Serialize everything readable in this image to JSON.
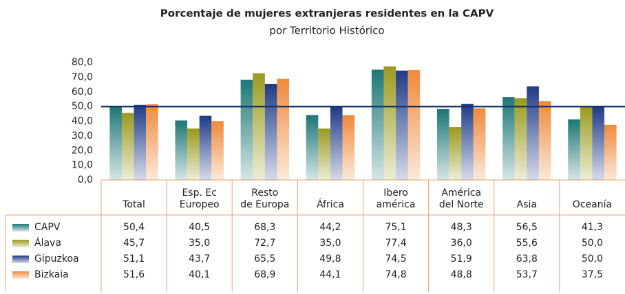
{
  "chart_data": {
    "type": "bar",
    "title": "Porcentaje de mujeres extranjeras residentes en la CAPV",
    "subtitle": "por Territorio Histórico",
    "categories": [
      "Total",
      "Esp. Ec\nEuropeo",
      "Resto\nde Europa",
      "África",
      "Ibero\namérica",
      "América\ndel Norte",
      "Asia",
      "Oceanía"
    ],
    "series": [
      {
        "name": "CAPV",
        "color": "#1d7676",
        "values": [
          50.4,
          40.5,
          68.3,
          44.2,
          75.1,
          48.3,
          56.5,
          41.3
        ],
        "value_labels": [
          "50,4",
          "40,5",
          "68,3",
          "44,2",
          "75,1",
          "48,3",
          "56,5",
          "41,3"
        ]
      },
      {
        "name": "Álava",
        "color": "#9a9a1e",
        "values": [
          45.7,
          35.0,
          72.7,
          35.0,
          77.4,
          36.0,
          55.6,
          50.0
        ],
        "value_labels": [
          "45,7",
          "35,0",
          "72,7",
          "35,0",
          "77,4",
          "36,0",
          "55,6",
          "50,0"
        ]
      },
      {
        "name": "Gipuzkoa",
        "color": "#1f3a86",
        "values": [
          51.1,
          43.7,
          65.5,
          49.8,
          74.5,
          51.9,
          63.8,
          50.0
        ],
        "value_labels": [
          "51,1",
          "43,7",
          "65,5",
          "49,8",
          "74,5",
          "51,9",
          "63,8",
          "50,0"
        ]
      },
      {
        "name": "Bizkaia",
        "color": "#f0893a",
        "values": [
          51.6,
          40.1,
          68.9,
          44.1,
          74.8,
          48.8,
          53.7,
          37.5
        ],
        "value_labels": [
          "51,6",
          "40,1",
          "68,9",
          "44,1",
          "74,8",
          "48,8",
          "53,7",
          "37,5"
        ]
      }
    ],
    "ylim": [
      0,
      80
    ],
    "yticks": [
      {
        "value": 0,
        "label": "0,0"
      },
      {
        "value": 10,
        "label": "10,0"
      },
      {
        "value": 20,
        "label": "20,0"
      },
      {
        "value": 30,
        "label": "30,0"
      },
      {
        "value": 40,
        "label": "40,0"
      },
      {
        "value": 50,
        "label": "50,0"
      },
      {
        "value": 60,
        "label": "60,0"
      },
      {
        "value": 70,
        "label": "70,0"
      },
      {
        "value": 80,
        "label": "80,0"
      }
    ],
    "reference_line": 50,
    "reference_color": "#1a3466"
  }
}
